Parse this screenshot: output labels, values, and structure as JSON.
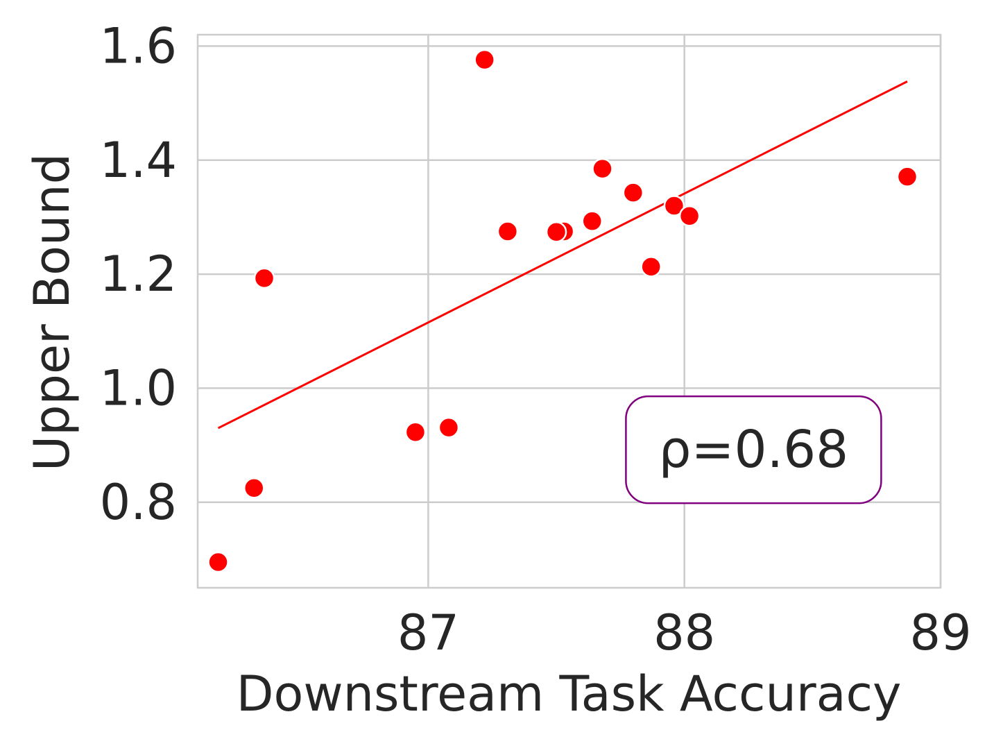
{
  "chart_data": {
    "type": "scatter",
    "title": "",
    "xlabel": "Downstream Task Accuracy",
    "ylabel": "Upper Bound",
    "xlim": [
      86.1,
      89.0
    ],
    "ylim": [
      0.65,
      1.62
    ],
    "xticks": [
      87,
      88,
      89
    ],
    "yticks": [
      0.8,
      1.0,
      1.2,
      1.4,
      1.6
    ],
    "xtick_labels": [
      "87",
      "88",
      "89"
    ],
    "ytick_labels": [
      "0.8",
      "1.0",
      "1.2",
      "1.4",
      "1.6"
    ],
    "grid": true,
    "point_color": "#ff0000",
    "fit_line_color": "#ff0000",
    "points": [
      {
        "x": 86.18,
        "y": 0.695
      },
      {
        "x": 86.32,
        "y": 0.825
      },
      {
        "x": 86.36,
        "y": 1.193
      },
      {
        "x": 86.95,
        "y": 0.923
      },
      {
        "x": 87.08,
        "y": 0.931
      },
      {
        "x": 87.22,
        "y": 1.576
      },
      {
        "x": 87.31,
        "y": 1.275
      },
      {
        "x": 87.53,
        "y": 1.275
      },
      {
        "x": 87.5,
        "y": 1.274
      },
      {
        "x": 87.64,
        "y": 1.293
      },
      {
        "x": 87.68,
        "y": 1.385
      },
      {
        "x": 87.8,
        "y": 1.343
      },
      {
        "x": 87.87,
        "y": 1.213
      },
      {
        "x": 87.96,
        "y": 1.32
      },
      {
        "x": 88.02,
        "y": 1.302
      },
      {
        "x": 88.87,
        "y": 1.371
      }
    ],
    "fit_line": {
      "x": [
        86.18,
        88.87
      ],
      "y": [
        0.93,
        1.538
      ]
    },
    "annotation": {
      "text": "ρ=0.68",
      "border_color": "#800080",
      "x_center": 88.27,
      "y_center": 0.892
    }
  }
}
